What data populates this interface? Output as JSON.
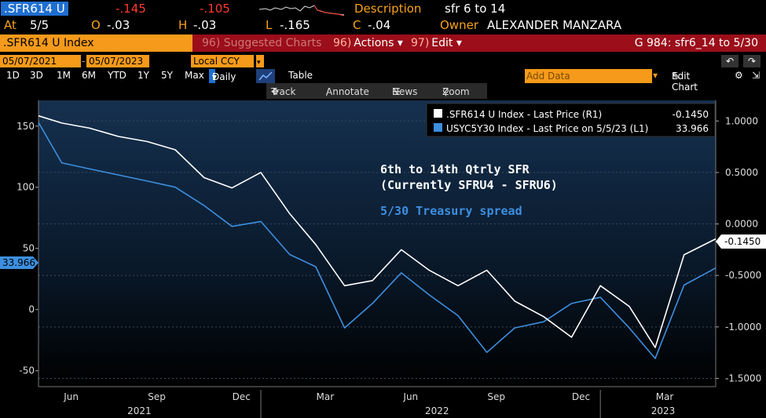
{
  "header": {
    "ticker": ".SFR614 U",
    "last_change": "-.145",
    "change2": "-.105",
    "desc_label": "Description",
    "desc_value": "sfr 6 to 14",
    "at_label": "At",
    "at_value": "5/5",
    "o_label": "O",
    "o_value": "-.03",
    "h_label": "H",
    "h_value": "-.03",
    "l_label": "L",
    "l_value": "-.165",
    "c_label": "C",
    "c_value": "-.04",
    "owner_label": "Owner",
    "owner_value": "ALEXANDER MANZARA"
  },
  "tabbar": {
    "index_name": ".SFR614 U Index",
    "suggested_num": "96)",
    "suggested_label": "Suggested Charts",
    "actions_num": "96)",
    "actions_label": "Actions",
    "edit_num": "97)",
    "edit_label": "Edit",
    "chart_id": "G 984: sfr6_14 to 5/30"
  },
  "controls": {
    "start_date": "05/07/2021",
    "end_date": "05/07/2023",
    "currency": "Local CCY",
    "periods": [
      "1D",
      "3D",
      "1M",
      "6M",
      "YTD",
      "1Y",
      "5Y",
      "Max"
    ],
    "frequency": "Daily",
    "table_label": "Table",
    "add_data_placeholder": "Add Data",
    "edit_chart_label": "Edit Chart",
    "track_label": "Track",
    "annotate_label": "Annotate",
    "news_label": "News",
    "zoom_label": "Zoom"
  },
  "colors": {
    "series1": "#ffffff",
    "series2": "#3d8fe0",
    "accent": "#f59a1a",
    "tabbar": "#9b0e1a",
    "negative": "#ff3b30"
  },
  "chart_data": {
    "type": "line",
    "annotation_line1": "6th to 14th Qtrly SFR",
    "annotation_line2": "(Currently SFRU4 - SFRU6)",
    "annotation_blue": "5/30 Treasury spread",
    "x_month_labels": [
      "Jun",
      "Sep",
      "Dec",
      "Mar",
      "Jun",
      "Sep",
      "Dec",
      "Mar"
    ],
    "x_year_labels": [
      "2021",
      "2022",
      "2023"
    ],
    "left_axis": {
      "ticks": [
        150,
        100,
        50,
        0,
        -50
      ],
      "range": [
        -63,
        171
      ]
    },
    "right_axis": {
      "ticks": [
        "1.0000",
        "0.5000",
        "0.0000",
        "-0.5000",
        "-1.0000",
        "-1.5000"
      ],
      "range": [
        -1.58,
        1.2
      ]
    },
    "series": [
      {
        "name": ".SFR614 U Index - Last Price (R1)",
        "legend_value": "-0.1450",
        "last_label": "-0.1450",
        "axis": "right",
        "dates": [
          "2021-05-07",
          "2021-06-01",
          "2021-07-01",
          "2021-08-01",
          "2021-09-01",
          "2021-10-01",
          "2021-11-01",
          "2021-12-01",
          "2022-01-01",
          "2022-02-01",
          "2022-03-01",
          "2022-04-01",
          "2022-05-01",
          "2022-06-01",
          "2022-07-01",
          "2022-08-01",
          "2022-09-01",
          "2022-10-01",
          "2022-11-01",
          "2022-12-01",
          "2023-01-01",
          "2023-02-01",
          "2023-03-01",
          "2023-04-01",
          "2023-05-05"
        ],
        "values": [
          1.05,
          0.98,
          0.93,
          0.85,
          0.8,
          0.72,
          0.45,
          0.35,
          0.5,
          0.1,
          -0.2,
          -0.6,
          -0.55,
          -0.25,
          -0.45,
          -0.6,
          -0.45,
          -0.75,
          -0.9,
          -1.1,
          -0.6,
          -0.8,
          -1.2,
          -0.3,
          -0.145
        ]
      },
      {
        "name": "USYC5Y30 Index - Last Price on 5/5/23 (L1)",
        "legend_value": "33.966",
        "last_label": "33.966",
        "axis": "left",
        "dates": [
          "2021-05-07",
          "2021-06-01",
          "2021-07-01",
          "2021-08-01",
          "2021-09-01",
          "2021-10-01",
          "2021-11-01",
          "2021-12-01",
          "2022-01-01",
          "2022-02-01",
          "2022-03-01",
          "2022-04-01",
          "2022-05-01",
          "2022-06-01",
          "2022-07-01",
          "2022-08-01",
          "2022-09-01",
          "2022-10-01",
          "2022-11-01",
          "2022-12-01",
          "2023-01-01",
          "2023-02-01",
          "2023-03-01",
          "2023-04-01",
          "2023-05-05"
        ],
        "values": [
          153,
          120,
          115,
          110,
          105,
          100,
          85,
          68,
          72,
          45,
          35,
          -15,
          5,
          30,
          12,
          -5,
          -35,
          -15,
          -10,
          5,
          10,
          -15,
          -40,
          20,
          33.966
        ]
      }
    ]
  }
}
